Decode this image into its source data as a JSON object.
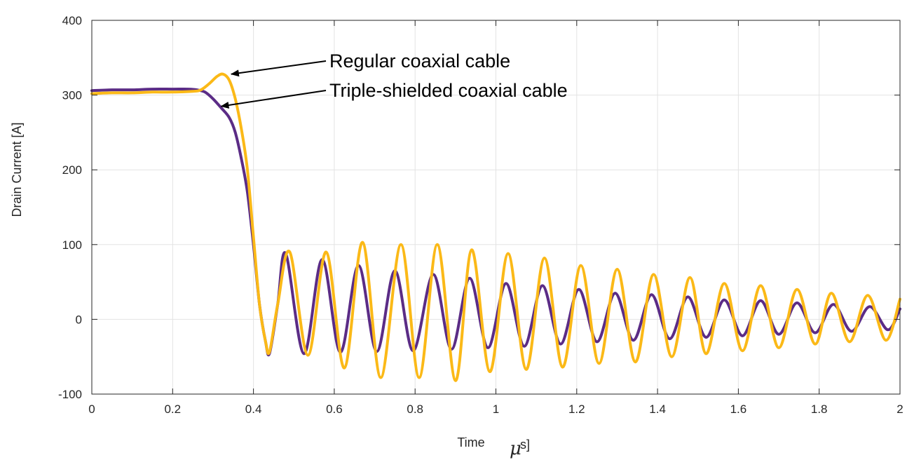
{
  "chart_data": {
    "type": "line",
    "title": "",
    "xlabel": "Time",
    "xlabel_unit_glyph": "μ",
    "xlabel_unit_tail": "s]",
    "ylabel": "Drain Current [A]",
    "xlim": [
      0,
      2
    ],
    "ylim": [
      -100,
      400
    ],
    "x_ticks": [
      0,
      0.2,
      0.4,
      0.6,
      0.8,
      1,
      1.2,
      1.4,
      1.6,
      1.8,
      2
    ],
    "x_tick_labels": [
      "0",
      "0.2",
      "0.4",
      "0.6",
      "0.8",
      "1",
      "1.2",
      "1.4",
      "1.6",
      "1.8",
      "2"
    ],
    "y_ticks": [
      -100,
      0,
      100,
      200,
      300,
      400
    ],
    "y_tick_labels": [
      "-100",
      "0",
      "100",
      "200",
      "300",
      "400"
    ],
    "grid": true,
    "legend": "none",
    "series": [
      {
        "name": "Regular coaxial cable",
        "color": "#FBB917",
        "x": [
          0,
          0.05,
          0.1,
          0.15,
          0.2,
          0.25,
          0.27,
          0.29,
          0.31,
          0.325,
          0.34,
          0.355,
          0.37,
          0.385,
          0.4,
          0.415,
          0.43,
          0.44,
          0.46,
          0.49,
          0.535,
          0.58,
          0.625,
          0.67,
          0.715,
          0.765,
          0.81,
          0.855,
          0.9,
          0.94,
          0.985,
          1.03,
          1.075,
          1.12,
          1.165,
          1.21,
          1.255,
          1.3,
          1.345,
          1.39,
          1.435,
          1.48,
          1.52,
          1.565,
          1.61,
          1.655,
          1.7,
          1.745,
          1.79,
          1.83,
          1.875,
          1.92,
          1.965,
          2.0
        ],
        "y": [
          302,
          303,
          303,
          304,
          304,
          305,
          307,
          315,
          325,
          328,
          320,
          295,
          255,
          200,
          110,
          20,
          -30,
          -43,
          20,
          90,
          -48,
          90,
          -65,
          103,
          -78,
          100,
          -78,
          100,
          -82,
          93,
          -70,
          88,
          -67,
          82,
          -64,
          72,
          -59,
          67,
          -57,
          60,
          -50,
          56,
          -46,
          48,
          -42,
          45,
          -38,
          40,
          -33,
          35,
          -30,
          32,
          -28,
          27
        ]
      },
      {
        "name": "Triple-shielded coaxial cable",
        "color": "#5B2C86",
        "x": [
          0,
          0.05,
          0.1,
          0.15,
          0.2,
          0.24,
          0.26,
          0.28,
          0.3,
          0.32,
          0.34,
          0.355,
          0.37,
          0.385,
          0.4,
          0.415,
          0.43,
          0.44,
          0.46,
          0.48,
          0.525,
          0.57,
          0.615,
          0.66,
          0.705,
          0.75,
          0.795,
          0.845,
          0.89,
          0.935,
          0.98,
          1.025,
          1.07,
          1.115,
          1.16,
          1.205,
          1.25,
          1.295,
          1.34,
          1.385,
          1.43,
          1.475,
          1.52,
          1.565,
          1.61,
          1.655,
          1.7,
          1.745,
          1.79,
          1.835,
          1.88,
          1.925,
          1.97,
          2.0
        ],
        "y": [
          306,
          307,
          307,
          308,
          308,
          308,
          307,
          304,
          295,
          283,
          270,
          250,
          215,
          170,
          100,
          20,
          -30,
          -45,
          20,
          88,
          -46,
          80,
          -44,
          72,
          -43,
          65,
          -42,
          60,
          -40,
          55,
          -38,
          48,
          -36,
          45,
          -33,
          40,
          -30,
          35,
          -28,
          33,
          -26,
          30,
          -24,
          26,
          -22,
          25,
          -20,
          22,
          -18,
          20,
          -16,
          17,
          -14,
          14
        ]
      }
    ],
    "annotations": [
      {
        "text": "Regular coaxial cable",
        "target_series": 0,
        "target": [
          0.345,
          328
        ]
      },
      {
        "text": "Triple-shielded coaxial cable",
        "target_series": 1,
        "target": [
          0.32,
          285
        ]
      }
    ]
  }
}
